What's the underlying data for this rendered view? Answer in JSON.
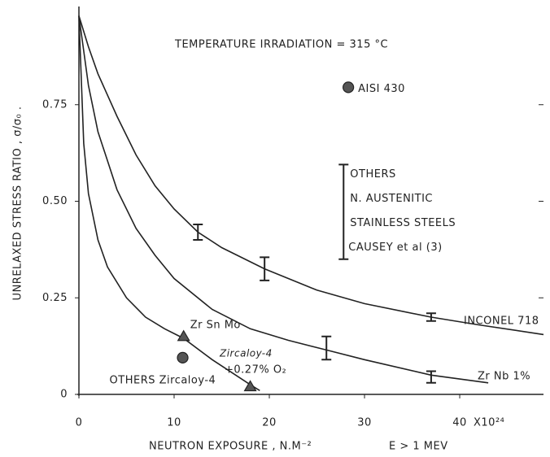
{
  "chart_data": {
    "type": "line",
    "title": "TEMPERATURE IRRADIATION = 315 °C",
    "x_label": "NEUTRON EXPOSURE , N.M⁻²",
    "x_label_note": "E > 1 MEV",
    "x_multiplier": "X10²⁴",
    "y_label": "UNRELAXED STRESS RATIO , σ/σ₀ .",
    "xlim": [
      0,
      48.8
    ],
    "ylim": [
      0,
      1.0
    ],
    "xticks": [
      0,
      10,
      20,
      30,
      40
    ],
    "yticks": [
      0,
      0.25,
      {
        "value": 0.5,
        "label": "0.50"
      },
      0.75
    ],
    "color": "#222222",
    "series": [
      {
        "name": "INCONEL 718",
        "x": [
          0,
          1,
          2,
          4,
          6,
          8,
          10,
          12.5,
          15,
          19.5,
          25,
          30,
          37,
          42,
          48.8
        ],
        "values": [
          0.98,
          0.9,
          0.83,
          0.72,
          0.62,
          0.54,
          0.48,
          0.42,
          0.38,
          0.325,
          0.27,
          0.235,
          0.2,
          0.18,
          0.155
        ]
      },
      {
        "name": "Zr Nb 1%",
        "x": [
          0,
          1,
          2,
          4,
          6,
          8,
          10,
          14,
          18,
          22,
          26,
          30,
          37,
          43
        ],
        "values": [
          0.98,
          0.8,
          0.68,
          0.53,
          0.43,
          0.36,
          0.3,
          0.22,
          0.17,
          0.14,
          0.115,
          0.09,
          0.05,
          0.03
        ]
      },
      {
        "name": "Zircaloy-4",
        "x": [
          0,
          0.5,
          1,
          2,
          3,
          5,
          7,
          9,
          11,
          14,
          18,
          19
        ],
        "values": [
          0.98,
          0.65,
          0.52,
          0.4,
          0.33,
          0.25,
          0.2,
          0.17,
          0.145,
          0.09,
          0.025,
          0.01
        ]
      }
    ],
    "series_note": "+0.27% O₂",
    "points": [
      {
        "label": "AISI 430",
        "x": 28.3,
        "y": 0.795,
        "marker": "circle"
      },
      {
        "label": "Zr Sn Mo",
        "x": 11,
        "y": 0.15,
        "marker": "triangle"
      },
      {
        "x": 18,
        "y": 0.02,
        "marker": "triangle"
      },
      {
        "label": "OTHERS Zircaloy-4",
        "x": 10.9,
        "y": 0.095,
        "marker": "circle"
      }
    ],
    "error_bars": [
      {
        "x": 12.5,
        "y": 0.42,
        "error": 0.02
      },
      {
        "x": 19.5,
        "y": 0.325,
        "error": 0.03
      },
      {
        "x": 26,
        "y": 0.12,
        "error": 0.03
      },
      {
        "x": 37,
        "y": 0.2,
        "error": 0.01
      },
      {
        "x": 37,
        "y": 0.045,
        "error": 0.015
      }
    ],
    "range_bar": {
      "x": 27.8,
      "low": 0.35,
      "high": 0.595,
      "labels": [
        "OTHERS",
        "N. AUSTENITIC",
        "STAINLESS STEELS",
        "CAUSEY et al (3)"
      ]
    }
  }
}
